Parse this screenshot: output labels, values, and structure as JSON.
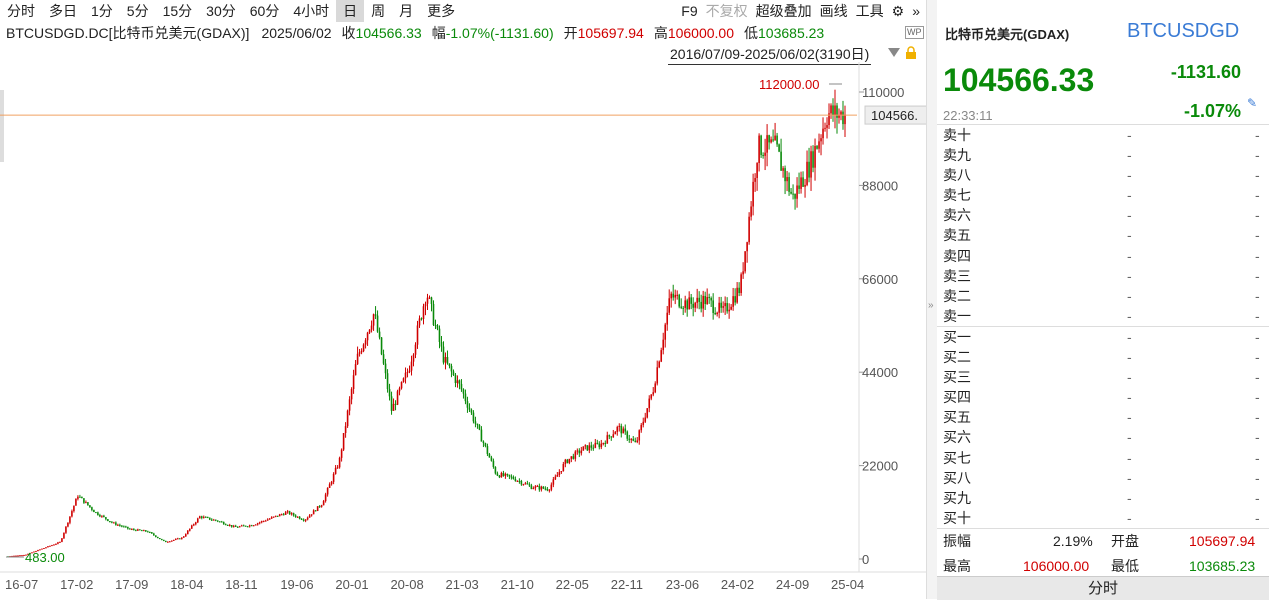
{
  "toolbar": {
    "periods": [
      "分时",
      "多日",
      "1分",
      "5分",
      "15分",
      "30分",
      "60分",
      "4小时",
      "日",
      "周",
      "月",
      "更多"
    ],
    "active_index": 8,
    "right_items": {
      "f9": "F9",
      "restore": "不复权",
      "overlay": "超级叠加",
      "draw": "画线",
      "tools": "工具"
    }
  },
  "info": {
    "symbol": "BTCUSDGD.DC[比特币兑美元(GDAX)]",
    "date": "2025/06/02",
    "close_label": "收",
    "close": "104566.33",
    "change_label": "幅",
    "change": "-1.07%(-1131.60)",
    "open_label": "开",
    "open": "105697.94",
    "high_label": "高",
    "high": "106000.00",
    "low_label": "低",
    "low": "103685.23",
    "wp": "WP"
  },
  "date_range": "2016/07/09-2025/06/02(3190日)",
  "chart_data": {
    "type": "line",
    "y_ticks": [
      "110000",
      "88000",
      "66000",
      "44000",
      "22000",
      "0"
    ],
    "x_ticks": [
      "16-07",
      "17-02",
      "17-09",
      "18-04",
      "18-11",
      "19-06",
      "20-01",
      "20-08",
      "21-03",
      "21-10",
      "22-05",
      "22-11",
      "23-06",
      "24-02",
      "24-09",
      "25-04"
    ],
    "high_label": "112000.00",
    "low_label": "483.00",
    "current_label": "104566.",
    "approx_close_series": [
      650,
      1000,
      2500,
      4000,
      15000,
      11000,
      8500,
      7000,
      6500,
      4000,
      5000,
      10000,
      9000,
      7500,
      8000,
      9500,
      11000,
      9200,
      13000,
      23000,
      47000,
      58000,
      35000,
      45000,
      63000,
      47000,
      40000,
      30000,
      20000,
      19000,
      17000,
      16500,
      23000,
      26000,
      27000,
      31000,
      27000,
      40000,
      62000,
      60000,
      61000,
      58000,
      64000,
      97000,
      97000,
      85000,
      93000,
      105000,
      104566
    ],
    "colors": {
      "up": "#d00000",
      "down": "#0a8a0a",
      "current_line": "#f0a060",
      "high": "#d00000",
      "low": "#0a8a0a"
    }
  },
  "panel": {
    "name": "比特币兑美元(GDAX)",
    "code": "BTCUSDGD",
    "price": "104566.33",
    "change": "-1131.60",
    "pct": "-1.07%",
    "time": "22:33:11",
    "asks": [
      "卖十",
      "卖九",
      "卖八",
      "卖七",
      "卖六",
      "卖五",
      "卖四",
      "卖三",
      "卖二",
      "卖一"
    ],
    "bids": [
      "买一",
      "买二",
      "买三",
      "买四",
      "买五",
      "买六",
      "买七",
      "买八",
      "买九",
      "买十"
    ],
    "dash": "-",
    "stats": {
      "amplitude_label": "振幅",
      "amplitude": "2.19%",
      "open_label": "开盘",
      "open": "105697.94",
      "high_label": "最高",
      "high": "106000.00",
      "low_label": "最低",
      "low": "103685.23"
    },
    "tab": "分时"
  }
}
